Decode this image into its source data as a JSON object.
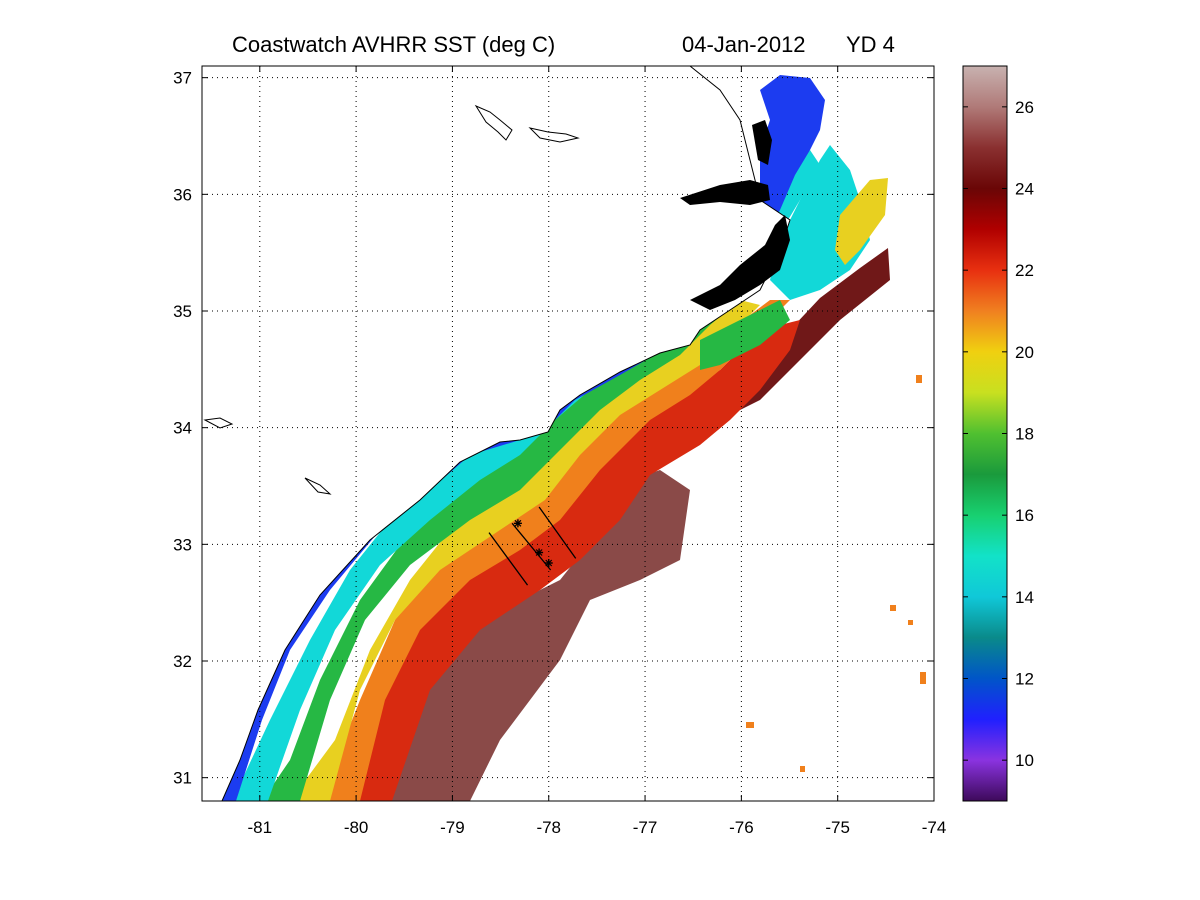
{
  "title": {
    "product": "Coastwatch   AVHRR   SST  (deg C)",
    "date": "04-Jan-2012",
    "yearday": "YD 4"
  },
  "map": {
    "lon_range": [
      -81.6,
      -74.0
    ],
    "lat_range": [
      30.8,
      37.1
    ],
    "lon_ticks": [
      "-81",
      "-80",
      "-79",
      "-78",
      "-77",
      "-76",
      "-75",
      "-74"
    ],
    "lat_ticks": [
      "31",
      "32",
      "33",
      "34",
      "35",
      "36",
      "37"
    ],
    "grid": "dotted",
    "land_color": "#ffffff",
    "lakes_color": "#000000",
    "transects": [
      {
        "start": [
          -78.62,
          33.1
        ],
        "end": [
          -78.22,
          32.65
        ]
      },
      {
        "start": [
          -78.38,
          33.18
        ],
        "end": [
          -77.98,
          32.78
        ]
      },
      {
        "start": [
          -78.1,
          33.32
        ],
        "end": [
          -77.72,
          32.88
        ]
      }
    ],
    "stations": [
      {
        "lon": -78.32,
        "lat": 33.18
      },
      {
        "lon": -78.1,
        "lat": 32.93
      },
      {
        "lon": -78.0,
        "lat": 32.84
      }
    ]
  },
  "colorbar": {
    "min": 9,
    "max": 27,
    "ticks": [
      "10",
      "12",
      "14",
      "16",
      "18",
      "20",
      "22",
      "24",
      "26"
    ],
    "colors": [
      "#3d0a5a",
      "#8a33e0",
      "#2020ff",
      "#0055c8",
      "#0a8a8a",
      "#10c8d8",
      "#12e2c8",
      "#18d070",
      "#1a9a3c",
      "#50c030",
      "#c8e020",
      "#f0d010",
      "#f08020",
      "#e83010",
      "#b00000",
      "#6a0606",
      "#8a3030",
      "#b07a78",
      "#c8b2b0"
    ]
  },
  "sst_colors": {
    "nearshore_cold": "#1c3cf0",
    "cyan": "#12d8d8",
    "green": "#26b844",
    "yellow": "#e8d020",
    "orange": "#f0801c",
    "red": "#d82a10",
    "gulfstream": "#8a4a48",
    "gulfstream_dark": "#701818"
  }
}
